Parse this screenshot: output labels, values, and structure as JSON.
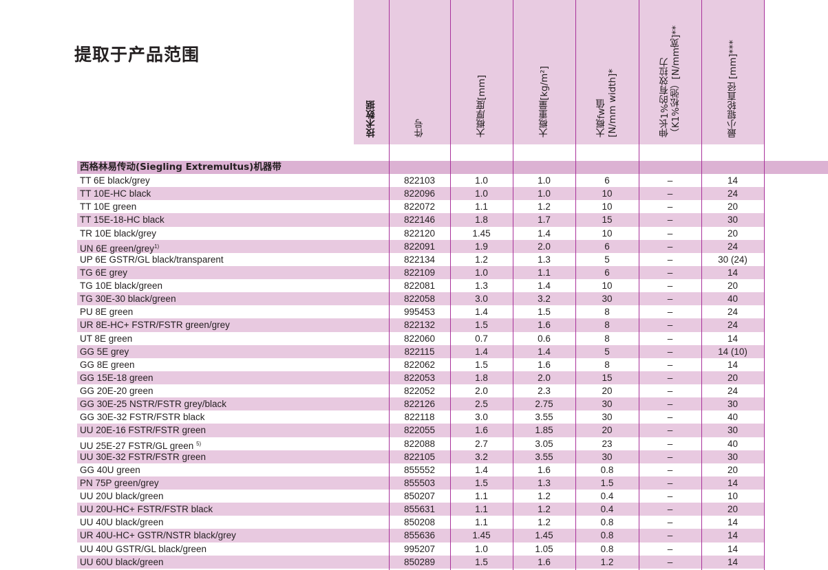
{
  "title": "提取于产品范围",
  "headers": {
    "tech_data": "技术数据",
    "part_no": "件号",
    "thickness": "大概厚度[mm]",
    "weight": "大概重量[kg/m²]",
    "fw_value": "大概fw值\n[N/mm width]*",
    "k1_force": "伸长1%的有效拉力\n（K1%松弛）[N/mm宽]**",
    "min_pulley": "最小辊轮直径 [mm]***"
  },
  "section_title": "西格林易传动(Siegling Extremultus)机器带",
  "rows": [
    {
      "name": "TT 6E black/grey",
      "sup": "",
      "part": "822103",
      "thk": "1.0",
      "wt": "1.0",
      "fw": "6",
      "k1": "–",
      "dia": "14"
    },
    {
      "name": "TT 10E-HC black",
      "sup": "",
      "part": "822096",
      "thk": "1.0",
      "wt": "1.0",
      "fw": "10",
      "k1": "–",
      "dia": "24"
    },
    {
      "name": "TT 10E green",
      "sup": "",
      "part": "822072",
      "thk": "1.1",
      "wt": "1.2",
      "fw": "10",
      "k1": "–",
      "dia": "20"
    },
    {
      "name": "TT 15E-18-HC black",
      "sup": "",
      "part": "822146",
      "thk": "1.8",
      "wt": "1.7",
      "fw": "15",
      "k1": "–",
      "dia": "30"
    },
    {
      "name": "TR 10E black/grey",
      "sup": "",
      "part": "822120",
      "thk": "1.45",
      "wt": "1.4",
      "fw": "10",
      "k1": "–",
      "dia": "20"
    },
    {
      "name": "UN 6E green/grey",
      "sup": "1)",
      "part": "822091",
      "thk": "1.9",
      "wt": "2.0",
      "fw": "6",
      "k1": "–",
      "dia": "24"
    },
    {
      "name": "UP 6E GSTR/GL black/transparent",
      "sup": "",
      "part": "822134",
      "thk": "1.2",
      "wt": "1.3",
      "fw": "5",
      "k1": "–",
      "dia": "30 (24)"
    },
    {
      "name": "TG 6E grey",
      "sup": "",
      "part": "822109",
      "thk": "1.0",
      "wt": "1.1",
      "fw": "6",
      "k1": "–",
      "dia": "14"
    },
    {
      "name": "TG 10E black/green",
      "sup": "",
      "part": "822081",
      "thk": "1.3",
      "wt": "1.4",
      "fw": "10",
      "k1": "–",
      "dia": "20"
    },
    {
      "name": "TG 30E-30 black/green",
      "sup": "",
      "part": "822058",
      "thk": "3.0",
      "wt": "3.2",
      "fw": "30",
      "k1": "–",
      "dia": "40"
    },
    {
      "name": "PU 8E green",
      "sup": "",
      "part": "995453",
      "thk": "1.4",
      "wt": "1.5",
      "fw": "8",
      "k1": "–",
      "dia": "24"
    },
    {
      "name": "UR 8E-HC+ FSTR/FSTR green/grey",
      "sup": "",
      "part": "822132",
      "thk": "1.5",
      "wt": "1.6",
      "fw": "8",
      "k1": "–",
      "dia": "24"
    },
    {
      "name": "UT 8E green",
      "sup": "",
      "part": "822060",
      "thk": "0.7",
      "wt": "0.6",
      "fw": "8",
      "k1": "–",
      "dia": "14"
    },
    {
      "name": "GG 5E grey",
      "sup": "",
      "part": "822115",
      "thk": "1.4",
      "wt": "1.4",
      "fw": "5",
      "k1": "–",
      "dia": "14 (10)"
    },
    {
      "name": "GG 8E green",
      "sup": "",
      "part": "822062",
      "thk": "1.5",
      "wt": "1.6",
      "fw": "8",
      "k1": "–",
      "dia": "14"
    },
    {
      "name": "GG 15E-18 green",
      "sup": "",
      "part": "822053",
      "thk": "1.8",
      "wt": "2.0",
      "fw": "15",
      "k1": "–",
      "dia": "20"
    },
    {
      "name": "GG 20E-20 green",
      "sup": "",
      "part": "822052",
      "thk": "2.0",
      "wt": "2.3",
      "fw": "20",
      "k1": "–",
      "dia": "24"
    },
    {
      "name": "GG 30E-25 NSTR/FSTR grey/black",
      "sup": "",
      "part": "822126",
      "thk": "2.5",
      "wt": "2.75",
      "fw": "30",
      "k1": "–",
      "dia": "30"
    },
    {
      "name": "GG 30E-32 FSTR/FSTR black",
      "sup": "",
      "part": "822118",
      "thk": "3.0",
      "wt": "3.55",
      "fw": "30",
      "k1": "–",
      "dia": "40"
    },
    {
      "name": "UU 20E-16 FSTR/FSTR green",
      "sup": "",
      "part": "822055",
      "thk": "1.6",
      "wt": "1.85",
      "fw": "20",
      "k1": "–",
      "dia": "30"
    },
    {
      "name": "UU 25E-27 FSTR/GL green ",
      "sup": "5)",
      "part": "822088",
      "thk": "2.7",
      "wt": "3.05",
      "fw": "23",
      "k1": "–",
      "dia": "40"
    },
    {
      "name": "UU 30E-32 FSTR/FSTR green",
      "sup": "",
      "part": "822105",
      "thk": "3.2",
      "wt": "3.55",
      "fw": "30",
      "k1": "–",
      "dia": "30"
    },
    {
      "name": "GG 40U green",
      "sup": "",
      "part": "855552",
      "thk": "1.4",
      "wt": "1.6",
      "fw": "0.8",
      "k1": "–",
      "dia": "20"
    },
    {
      "name": "PN 75P green/grey",
      "sup": "",
      "part": "855503",
      "thk": "1.5",
      "wt": "1.3",
      "fw": "1.5",
      "k1": "–",
      "dia": "14"
    },
    {
      "name": "UU 20U black/green",
      "sup": "",
      "part": "850207",
      "thk": "1.1",
      "wt": "1.2",
      "fw": "0.4",
      "k1": "–",
      "dia": "10"
    },
    {
      "name": "UU 20U-HC+ FSTR/FSTR black",
      "sup": "",
      "part": "855631",
      "thk": "1.1",
      "wt": "1.2",
      "fw": "0.4",
      "k1": "–",
      "dia": "20"
    },
    {
      "name": "UU 40U black/green",
      "sup": "",
      "part": "850208",
      "thk": "1.1",
      "wt": "1.2",
      "fw": "0.8",
      "k1": "–",
      "dia": "14"
    },
    {
      "name": "UR 40U-HC+ GSTR/NSTR black/grey",
      "sup": "",
      "part": "855636",
      "thk": "1.45",
      "wt": "1.45",
      "fw": "0.8",
      "k1": "–",
      "dia": "14"
    },
    {
      "name": "UU 40U GSTR/GL black/green",
      "sup": "",
      "part": "995207",
      "thk": "1.0",
      "wt": "1.05",
      "fw": "0.8",
      "k1": "–",
      "dia": "14"
    },
    {
      "name": "UU 60U black/green",
      "sup": "",
      "part": "850289",
      "thk": "1.5",
      "wt": "1.6",
      "fw": "1.2",
      "k1": "–",
      "dia": "14"
    }
  ],
  "colors": {
    "stripe": "#e8c9e0",
    "section": "#dcb2d3",
    "header": "#e8cbe1",
    "rule": "#a8309a"
  }
}
